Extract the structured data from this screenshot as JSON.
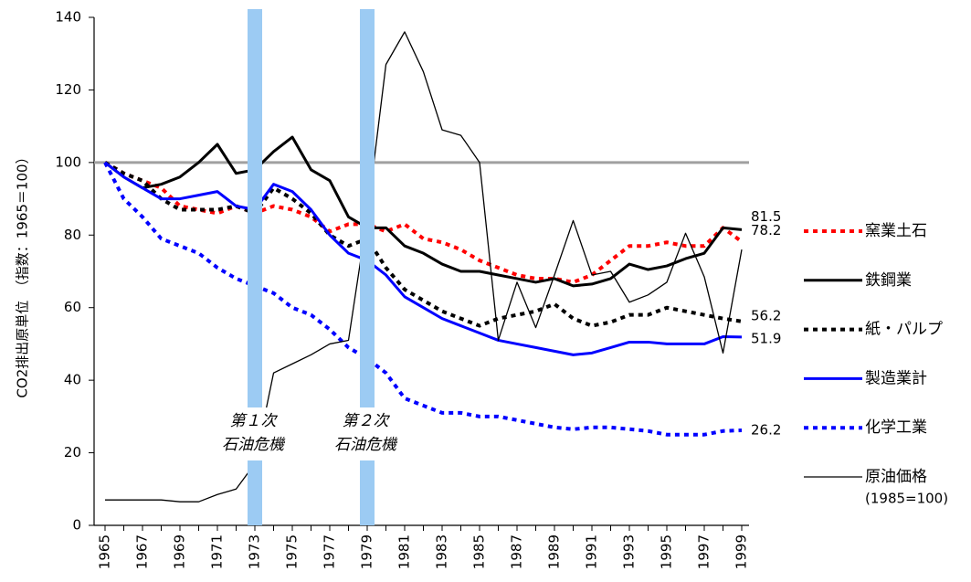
{
  "chart_data": {
    "type": "line",
    "y_label": "CO2排出原単位　（指数：1965＝100）",
    "categories": [
      "1965",
      null,
      "1967",
      null,
      "1969",
      null,
      "1971",
      null,
      "1973",
      null,
      "1975",
      null,
      "1977",
      null,
      "1979",
      null,
      "1981",
      null,
      "1983",
      null,
      "1985",
      null,
      "1987",
      null,
      "1989",
      null,
      "1991",
      null,
      "1993",
      null,
      "1995",
      null,
      "1997",
      null,
      "1999"
    ],
    "ylim": [
      0,
      140
    ],
    "yticks": [
      0,
      20,
      40,
      60,
      80,
      100,
      120,
      140
    ],
    "reference_line": {
      "value": 100,
      "color": "#a0a0a0"
    },
    "bands": [
      {
        "category": "1973",
        "color": "#9ccbf3",
        "label": [
          "第１次",
          "石油危機"
        ]
      },
      {
        "category": "1979",
        "color": "#9ccbf3",
        "label": [
          "第２次",
          "石油危機"
        ]
      }
    ],
    "series": [
      {
        "name": "窯業土石",
        "color": "#ff0000",
        "line": "dotted",
        "label_last": true,
        "values": [
          100,
          97,
          95,
          93,
          88,
          87,
          86,
          88,
          86,
          88,
          87,
          85,
          81,
          83,
          83,
          81,
          83,
          79,
          78,
          76,
          73,
          71,
          69,
          68,
          68,
          67,
          69,
          73,
          77,
          77,
          78,
          77,
          77,
          82,
          78.2
        ]
      },
      {
        "name": "鉄鋼業",
        "color": "#000000",
        "line": "thick",
        "label_last": true,
        "values": [
          100,
          96,
          93,
          94,
          96,
          100,
          105,
          97,
          98,
          103,
          107,
          98,
          95,
          85,
          82,
          82,
          77,
          75,
          72,
          70,
          70,
          69,
          68,
          67,
          68,
          66,
          66.5,
          68,
          72,
          70.5,
          71.5,
          73.5,
          75,
          82,
          81.5
        ]
      },
      {
        "name": "紙・パルプ",
        "color": "#000000",
        "line": "dotted",
        "label_last": true,
        "values": [
          100,
          97,
          95,
          90,
          87,
          87,
          87,
          88,
          86,
          93,
          90,
          86,
          80,
          77,
          79,
          71,
          65,
          62,
          59,
          57,
          55,
          57,
          58,
          59,
          61,
          57,
          55,
          56,
          58,
          58,
          60,
          59,
          58,
          57,
          56.2
        ]
      },
      {
        "name": "製造業計",
        "color": "#0000ff",
        "line": "thick",
        "label_last": true,
        "values": [
          100,
          96,
          93,
          90,
          90,
          91,
          92,
          88,
          87,
          94,
          92,
          87,
          80,
          75,
          73,
          69,
          63,
          60,
          57,
          55,
          53,
          51,
          50,
          49,
          48,
          47,
          47.5,
          49,
          50.5,
          50.5,
          50,
          50,
          50,
          52,
          51.9
        ]
      },
      {
        "name": "化学工業",
        "color": "#0000ff",
        "line": "dotted",
        "label_last": true,
        "values": [
          100,
          90,
          85,
          79,
          77,
          75,
          71,
          68,
          66,
          64,
          60,
          58,
          54,
          49,
          46,
          42,
          35,
          33,
          31,
          31,
          30,
          30,
          29,
          28,
          27,
          26.5,
          27,
          27,
          26.5,
          26,
          25,
          25,
          25,
          26,
          26.2
        ]
      },
      {
        "name": "原油価格",
        "name_note": "(1985=100)",
        "color": "#000000",
        "line": "thin",
        "label_last": false,
        "values": [
          7,
          7,
          7,
          7,
          6.5,
          6.5,
          8.5,
          10,
          17,
          42,
          44.5,
          47,
          50,
          51,
          85,
          127,
          136,
          125,
          109,
          107.5,
          100,
          51,
          67,
          54.5,
          69,
          84,
          69,
          70,
          61.5,
          63.5,
          67,
          80.5,
          68.5,
          47.5,
          76
        ]
      }
    ]
  }
}
